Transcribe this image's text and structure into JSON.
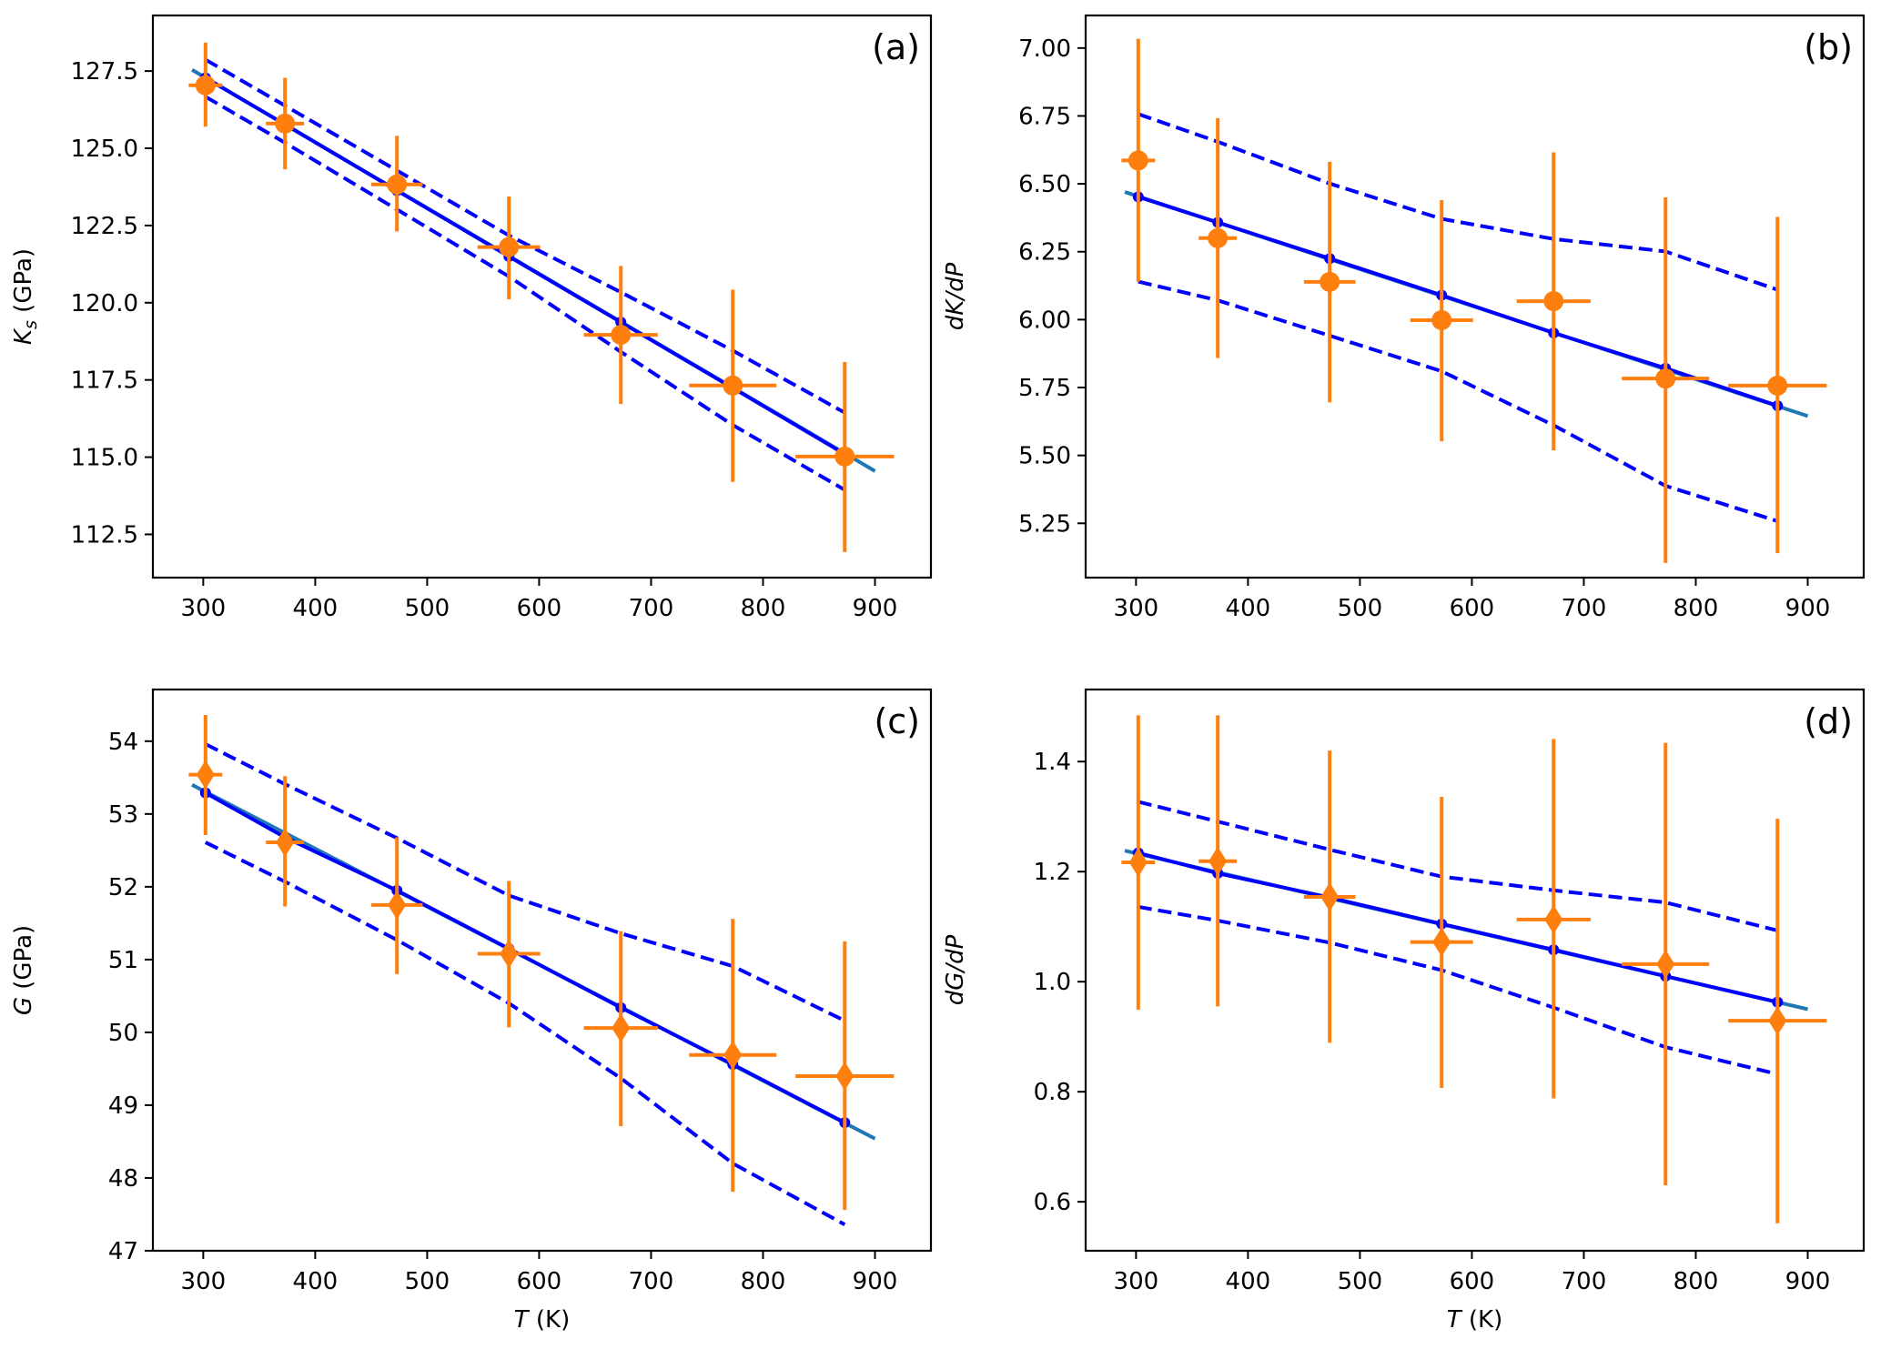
{
  "figure": {
    "colors": {
      "observed": "#ff7f0e",
      "model": "#0000ff",
      "fit_extension": "#1f77b4",
      "frame": "#000000"
    }
  },
  "chart_data": [
    {
      "type": "scatter",
      "panel_label": "(a)",
      "xlabel": "",
      "ylabel_main": "K",
      "ylabel_sub": "s",
      "ylabel_unit": " (GPa)",
      "xlim": [
        255,
        950
      ],
      "ylim": [
        111.1,
        129.3
      ],
      "xticks": [
        300,
        400,
        500,
        600,
        700,
        800,
        900
      ],
      "xtick_labels": [
        "300",
        "400",
        "500",
        "600",
        "700",
        "800",
        "900"
      ],
      "yticks": [
        112.5,
        115.0,
        117.5,
        120.0,
        122.5,
        125.0,
        127.5
      ],
      "ytick_labels": [
        "112.5",
        "115.0",
        "117.5",
        "120.0",
        "122.5",
        "125.0",
        "127.5"
      ],
      "marker": "circle",
      "observed": {
        "x": [
          302,
          373,
          473,
          573,
          673,
          773,
          873
        ],
        "y": [
          127.04,
          125.8,
          123.83,
          121.8,
          118.96,
          117.32,
          115.02
        ],
        "yerr_low": [
          125.7,
          124.32,
          122.31,
          120.11,
          116.72,
          114.2,
          111.93
        ],
        "yerr_high": [
          128.42,
          127.28,
          125.4,
          123.44,
          121.19,
          120.42,
          118.08
        ],
        "xerr": [
          15,
          17,
          23,
          28,
          33,
          39,
          44
        ]
      },
      "model": {
        "x": [
          302,
          373,
          473,
          573,
          673,
          773,
          873
        ],
        "y": [
          127.28,
          125.77,
          123.63,
          121.5,
          119.37,
          117.24,
          115.1
        ],
        "upper": [
          127.87,
          126.38,
          124.28,
          122.18,
          120.34,
          118.45,
          116.44
        ],
        "lower": [
          126.67,
          125.18,
          123.02,
          120.85,
          118.41,
          116.04,
          113.94
        ]
      },
      "fit_extension": {
        "x": [
          290,
          900
        ],
        "y": [
          127.54,
          114.55
        ]
      }
    },
    {
      "type": "scatter",
      "panel_label": "(b)",
      "xlabel": "",
      "ylabel_main": "dK/dP",
      "ylabel_sub": "",
      "ylabel_unit": "",
      "xlim": [
        255,
        950
      ],
      "ylim": [
        5.05,
        7.12
      ],
      "xticks": [
        300,
        400,
        500,
        600,
        700,
        800,
        900
      ],
      "xtick_labels": [
        "300",
        "400",
        "500",
        "600",
        "700",
        "800",
        "900"
      ],
      "yticks": [
        5.25,
        5.5,
        5.75,
        6.0,
        6.25,
        6.5,
        6.75,
        7.0
      ],
      "ytick_labels": [
        "5.25",
        "5.50",
        "5.75",
        "6.00",
        "6.25",
        "6.50",
        "6.75",
        "7.00"
      ],
      "marker": "circle",
      "observed": {
        "x": [
          302,
          373,
          473,
          573,
          673,
          773,
          873
        ],
        "y": [
          6.586,
          6.3,
          6.139,
          5.998,
          6.068,
          5.783,
          5.757
        ],
        "yerr_low": [
          6.14,
          5.859,
          5.695,
          5.552,
          5.519,
          5.104,
          5.14
        ],
        "yerr_high": [
          7.034,
          6.742,
          6.581,
          6.44,
          6.616,
          6.45,
          6.378
        ],
        "xerr": [
          15,
          17,
          23,
          28,
          33,
          39,
          44
        ]
      },
      "model": {
        "x": [
          302,
          373,
          473,
          573,
          673,
          773,
          873
        ],
        "y": [
          6.452,
          6.358,
          6.225,
          6.09,
          5.951,
          5.821,
          5.683
        ],
        "upper": [
          6.757,
          6.655,
          6.501,
          6.371,
          6.297,
          6.251,
          6.11
        ],
        "lower": [
          6.14,
          6.071,
          5.941,
          5.81,
          5.611,
          5.388,
          5.258
        ]
      },
      "fit_extension": {
        "x": [
          290,
          900
        ],
        "y": [
          6.47,
          5.645
        ]
      }
    },
    {
      "type": "scatter",
      "panel_label": "(c)",
      "xlabel_main": "T",
      "xlabel_unit": " (K)",
      "ylabel_main": "G",
      "ylabel_sub": "",
      "ylabel_unit": " (GPa)",
      "xlim": [
        255,
        950
      ],
      "ylim": [
        47.0,
        54.71
      ],
      "xticks": [
        300,
        400,
        500,
        600,
        700,
        800,
        900
      ],
      "xtick_labels": [
        "300",
        "400",
        "500",
        "600",
        "700",
        "800",
        "900"
      ],
      "yticks": [
        47,
        48,
        49,
        50,
        51,
        52,
        53,
        54
      ],
      "ytick_labels": [
        "47",
        "48",
        "49",
        "50",
        "51",
        "52",
        "53",
        "54"
      ],
      "marker": "diamond",
      "observed": {
        "x": [
          302,
          373,
          473,
          573,
          673,
          773,
          873
        ],
        "y": [
          53.54,
          52.61,
          51.75,
          51.08,
          50.06,
          49.69,
          49.4
        ],
        "yerr_low": [
          52.71,
          51.73,
          50.8,
          50.07,
          48.71,
          47.81,
          47.56
        ],
        "yerr_high": [
          54.36,
          53.52,
          52.68,
          52.08,
          51.39,
          51.56,
          51.25
        ],
        "xerr": [
          15,
          17,
          23,
          28,
          33,
          39,
          44
        ]
      },
      "model": {
        "x": [
          302,
          373,
          473,
          573,
          673,
          773,
          873
        ],
        "y": [
          53.29,
          52.68,
          51.95,
          51.15,
          50.34,
          49.56,
          48.76
        ],
        "upper": [
          53.96,
          53.41,
          52.67,
          51.88,
          51.36,
          50.91,
          50.16
        ],
        "lower": [
          52.61,
          52.07,
          51.27,
          50.4,
          49.37,
          48.2,
          47.36
        ]
      },
      "fit_extension": {
        "x": [
          290,
          900
        ],
        "y": [
          53.4,
          48.54
        ]
      }
    },
    {
      "type": "scatter",
      "panel_label": "(d)",
      "xlabel_main": "T",
      "xlabel_unit": " (K)",
      "ylabel_main": "dG/dP",
      "ylabel_sub": "",
      "ylabel_unit": "",
      "xlim": [
        255,
        950
      ],
      "ylim": [
        0.511,
        1.531
      ],
      "xticks": [
        300,
        400,
        500,
        600,
        700,
        800,
        900
      ],
      "xtick_labels": [
        "300",
        "400",
        "500",
        "600",
        "700",
        "800",
        "900"
      ],
      "yticks": [
        0.6,
        0.8,
        1.0,
        1.2,
        1.4
      ],
      "ytick_labels": [
        "0.6",
        "0.8",
        "1.0",
        "1.2",
        "1.4"
      ],
      "marker": "diamond",
      "observed": {
        "x": [
          302,
          373,
          473,
          573,
          673,
          773,
          873
        ],
        "y": [
          1.217,
          1.219,
          1.154,
          1.072,
          1.113,
          1.032,
          0.929
        ],
        "yerr_low": [
          0.949,
          0.955,
          0.889,
          0.807,
          0.788,
          0.63,
          0.561
        ],
        "yerr_high": [
          1.484,
          1.484,
          1.42,
          1.336,
          1.441,
          1.434,
          1.296
        ],
        "xerr": [
          15,
          17,
          23,
          28,
          33,
          39,
          44
        ]
      },
      "model": {
        "x": [
          302,
          373,
          473,
          573,
          673,
          773,
          873
        ],
        "y": [
          1.234,
          1.197,
          1.153,
          1.105,
          1.058,
          1.01,
          0.963
        ],
        "upper": [
          1.327,
          1.291,
          1.24,
          1.191,
          1.166,
          1.144,
          1.093
        ],
        "lower": [
          1.136,
          1.111,
          1.071,
          1.021,
          0.953,
          0.881,
          0.832
        ]
      },
      "fit_extension": {
        "x": [
          290,
          900
        ],
        "y": [
          1.238,
          0.95
        ]
      }
    }
  ]
}
